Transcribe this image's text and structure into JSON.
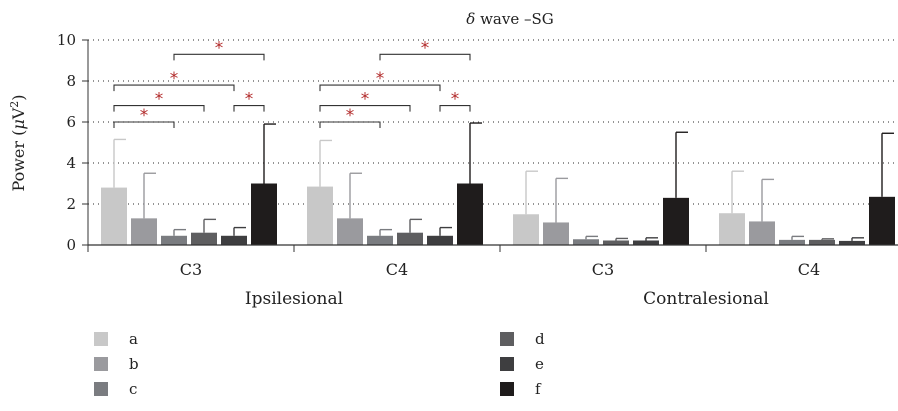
{
  "chart_data": {
    "type": "bar",
    "title_symbol": "δ",
    "title_text": " wave –SG",
    "ylabel_main": "Power (",
    "ylabel_mu": "μ",
    "ylabel_unit": "V",
    "ylabel_sup": "2",
    "ylabel_close": ")",
    "ylim": [
      0,
      10
    ],
    "yticks": [
      "0",
      "2",
      "4",
      "6",
      "8",
      "10"
    ],
    "grid": "dotted horizontal",
    "groups": [
      {
        "label": "Ipsilesional",
        "categories": [
          "C3",
          "C4"
        ]
      },
      {
        "label": "Contralesional",
        "categories": [
          "C3",
          "C4"
        ]
      }
    ],
    "categories": [
      "C3",
      "C4",
      "C3",
      "C4"
    ],
    "series": [
      {
        "name": "a",
        "color": "#c8c8c8",
        "values": [
          2.8,
          2.85,
          1.5,
          1.55
        ],
        "errors": [
          5.15,
          5.1,
          3.6,
          3.6
        ]
      },
      {
        "name": "b",
        "color": "#9a9a9e",
        "values": [
          1.3,
          1.3,
          1.1,
          1.15
        ],
        "errors": [
          3.5,
          3.5,
          3.25,
          3.2
        ]
      },
      {
        "name": "c",
        "color": "#7a7c80",
        "values": [
          0.45,
          0.45,
          0.28,
          0.25
        ],
        "errors": [
          0.75,
          0.75,
          0.42,
          0.42
        ]
      },
      {
        "name": "d",
        "color": "#5e5e60",
        "values": [
          0.6,
          0.6,
          0.22,
          0.25
        ],
        "errors": [
          1.25,
          1.25,
          0.32,
          0.3
        ]
      },
      {
        "name": "e",
        "color": "#3e3e40",
        "values": [
          0.45,
          0.45,
          0.22,
          0.2
        ],
        "errors": [
          0.85,
          0.85,
          0.35,
          0.35
        ]
      },
      {
        "name": "f",
        "color": "#1f1c1c",
        "values": [
          3.0,
          3.0,
          2.3,
          2.35
        ],
        "errors": [
          5.9,
          5.95,
          5.5,
          5.45
        ]
      }
    ],
    "significance_brackets": [
      {
        "category": 0,
        "from_series": 0,
        "to_series": 2,
        "level": 6,
        "label": "*"
      },
      {
        "category": 0,
        "from_series": 0,
        "to_series": 3,
        "level": 6.8,
        "label": "*"
      },
      {
        "category": 0,
        "from_series": 0,
        "to_series": 4,
        "level": 7.8,
        "label": "*"
      },
      {
        "category": 0,
        "from_series": 2,
        "to_series": 5,
        "level": 9.3,
        "label": "*"
      },
      {
        "category": 0,
        "from_series": 4,
        "to_series": 5,
        "level": 6.8,
        "label": "*"
      },
      {
        "category": 1,
        "from_series": 0,
        "to_series": 2,
        "level": 6,
        "label": "*"
      },
      {
        "category": 1,
        "from_series": 0,
        "to_series": 3,
        "level": 6.8,
        "label": "*"
      },
      {
        "category": 1,
        "from_series": 0,
        "to_series": 4,
        "level": 7.8,
        "label": "*"
      },
      {
        "category": 1,
        "from_series": 2,
        "to_series": 5,
        "level": 9.3,
        "label": "*"
      },
      {
        "category": 1,
        "from_series": 4,
        "to_series": 5,
        "level": 6.8,
        "label": "*"
      }
    ],
    "legend_position": "bottom-left, two columns"
  }
}
